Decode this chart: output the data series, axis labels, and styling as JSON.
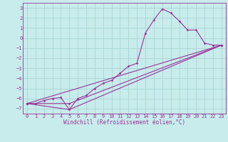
{
  "xlabel": "Windchill (Refroidissement éolien,°C)",
  "bg_color": "#c8ecec",
  "grid_color": "#aad4d4",
  "line_color": "#993399",
  "spine_color": "#993399",
  "xlim": [
    -0.5,
    23.5
  ],
  "ylim": [
    -7.5,
    3.5
  ],
  "xticks": [
    0,
    1,
    2,
    3,
    4,
    5,
    6,
    7,
    8,
    9,
    10,
    11,
    12,
    13,
    14,
    15,
    16,
    17,
    18,
    19,
    20,
    21,
    22,
    23
  ],
  "yticks": [
    -7,
    -6,
    -5,
    -4,
    -3,
    -2,
    -1,
    0,
    1,
    2,
    3
  ],
  "main_x": [
    0,
    1,
    2,
    3,
    4,
    5,
    6,
    7,
    8,
    9,
    10,
    11,
    12,
    13,
    14,
    15,
    16,
    17,
    18,
    19,
    20,
    21,
    22,
    23
  ],
  "main_y": [
    -6.5,
    -6.5,
    -6.2,
    -6.0,
    -5.9,
    -7.1,
    -6.0,
    -5.7,
    -5.0,
    -4.5,
    -4.2,
    -3.5,
    -2.8,
    -2.5,
    0.5,
    1.8,
    2.9,
    2.5,
    1.7,
    0.8,
    0.8,
    -0.5,
    -0.7,
    -0.7
  ],
  "line2_x": [
    0,
    23
  ],
  "line2_y": [
    -6.5,
    -0.7
  ],
  "line3_x": [
    0,
    5,
    23
  ],
  "line3_y": [
    -6.5,
    -6.5,
    -0.7
  ],
  "line4_x": [
    0,
    5,
    23
  ],
  "line4_y": [
    -6.5,
    -7.1,
    -0.7
  ],
  "tick_fontsize": 5.0,
  "xlabel_fontsize": 5.5,
  "marker": "D",
  "markersize": 1.8,
  "linewidth": 0.8
}
